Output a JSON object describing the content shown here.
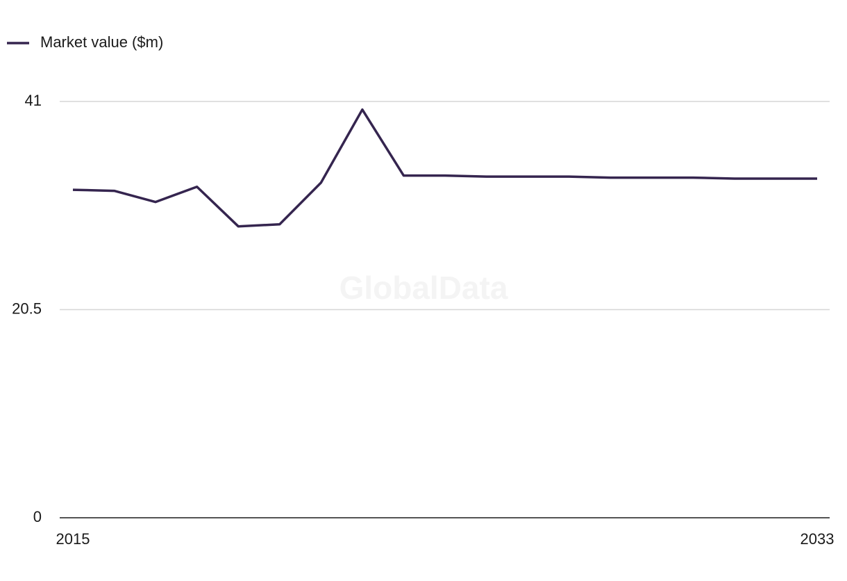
{
  "chart_data": {
    "type": "line",
    "watermark": "GlobalData",
    "x": [
      2015,
      2016,
      2017,
      2018,
      2019,
      2020,
      2021,
      2022,
      2023,
      2024,
      2025,
      2026,
      2027,
      2028,
      2029,
      2030,
      2031,
      2032,
      2033
    ],
    "series": [
      {
        "name": "Market value ($m)",
        "color": "#35254f",
        "values": [
          32.3,
          32.2,
          31.1,
          32.6,
          28.7,
          28.9,
          33.0,
          40.2,
          33.7,
          33.7,
          33.6,
          33.6,
          33.6,
          33.5,
          33.5,
          33.5,
          33.4,
          33.4,
          33.4
        ]
      }
    ],
    "xlim": [
      2015,
      2033
    ],
    "xticks": [
      2015,
      2033
    ],
    "ylim": [
      0,
      41
    ],
    "yticks": [
      0,
      20.5,
      41
    ],
    "grid": true,
    "legend": "top-left"
  }
}
